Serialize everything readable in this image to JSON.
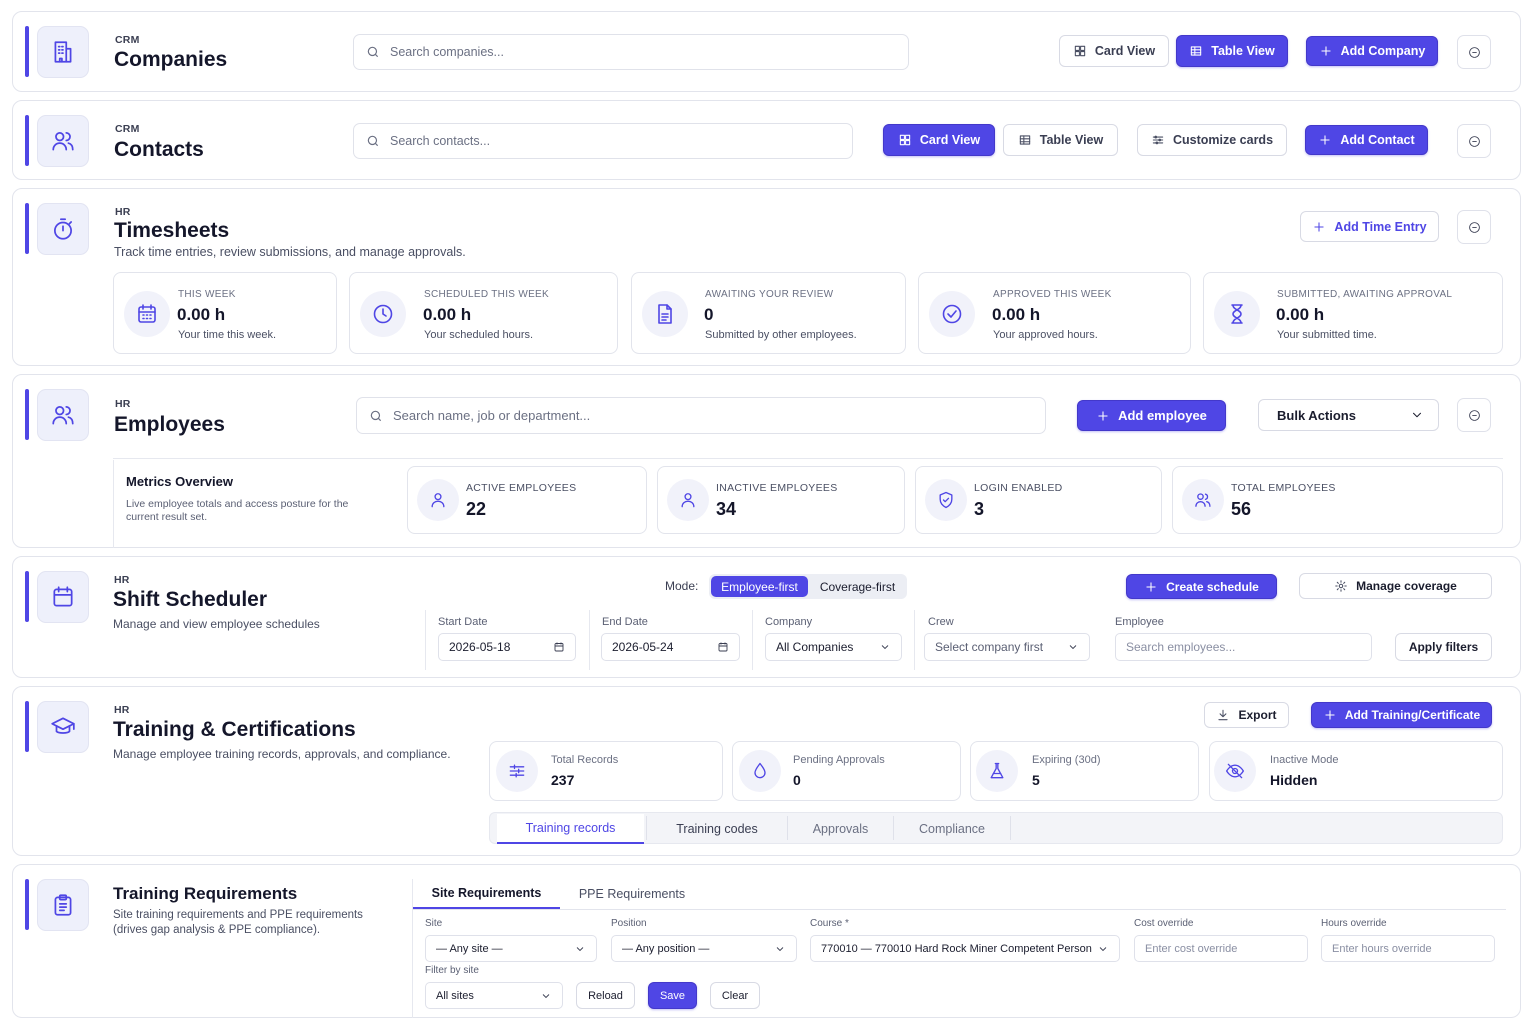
{
  "companies": {
    "kicker": "CRM",
    "title": "Companies",
    "search_placeholder": "Search companies...",
    "card_view": "Card View",
    "table_view": "Table View",
    "add": "Add Company"
  },
  "contacts": {
    "kicker": "CRM",
    "title": "Contacts",
    "search_placeholder": "Search contacts...",
    "card_view": "Card View",
    "table_view": "Table View",
    "customize": "Customize cards",
    "add": "Add Contact"
  },
  "timesheets": {
    "kicker": "HR",
    "title": "Timesheets",
    "subtitle": "Track time entries, review submissions, and manage approvals.",
    "add": "Add Time Entry",
    "stats": [
      {
        "label": "THIS WEEK",
        "value": "0.00 h",
        "note": "Your time this week.",
        "icon": "calendar-icon"
      },
      {
        "label": "SCHEDULED THIS WEEK",
        "value": "0.00 h",
        "note": "Your scheduled hours.",
        "icon": "clock-icon"
      },
      {
        "label": "AWAITING YOUR REVIEW",
        "value": "0",
        "note": "Submitted by other employees.",
        "icon": "document-icon"
      },
      {
        "label": "APPROVED THIS WEEK",
        "value": "0.00 h",
        "note": "Your approved hours.",
        "icon": "check-circle-icon"
      },
      {
        "label": "SUBMITTED, AWAITING APPROVAL",
        "value": "0.00 h",
        "note": "Your submitted time.",
        "icon": "hourglass-icon"
      }
    ]
  },
  "employees": {
    "kicker": "HR",
    "title": "Employees",
    "search_placeholder": "Search name, job or department...",
    "add": "Add employee",
    "bulk": "Bulk Actions",
    "metrics_title": "Metrics Overview",
    "metrics_desc": "Live employee totals and access posture for the current result set.",
    "metrics": [
      {
        "label": "ACTIVE EMPLOYEES",
        "value": "22",
        "icon": "user-icon"
      },
      {
        "label": "INACTIVE EMPLOYEES",
        "value": "34",
        "icon": "user-icon"
      },
      {
        "label": "LOGIN ENABLED",
        "value": "3",
        "icon": "shield-check-icon"
      },
      {
        "label": "TOTAL EMPLOYEES",
        "value": "56",
        "icon": "users-icon"
      }
    ]
  },
  "scheduler": {
    "kicker": "HR",
    "title": "Shift Scheduler",
    "subtitle": "Manage and view employee schedules",
    "mode_label": "Mode:",
    "mode_options": [
      "Employee-first",
      "Coverage-first"
    ],
    "mode_selected": "Employee-first",
    "create": "Create schedule",
    "manage": "Manage coverage",
    "start_label": "Start Date",
    "start_value": "2026-05-18",
    "end_label": "End Date",
    "end_value": "2026-05-24",
    "company_label": "Company",
    "company_value": "All Companies",
    "crew_label": "Crew",
    "crew_value": "Select company first",
    "employee_label": "Employee",
    "employee_placeholder": "Search employees...",
    "apply": "Apply filters"
  },
  "training": {
    "kicker": "HR",
    "title": "Training & Certifications",
    "subtitle": "Manage employee training records, approvals, and compliance.",
    "export": "Export",
    "add": "Add Training/Certificate",
    "stats": [
      {
        "label": "Total Records",
        "value": "237",
        "icon": "sliders-icon"
      },
      {
        "label": "Pending Approvals",
        "value": "0",
        "icon": "drop-icon"
      },
      {
        "label": "Expiring (30d)",
        "value": "5",
        "icon": "flask-icon"
      },
      {
        "label": "Inactive Mode",
        "value": "Hidden",
        "icon": "eye-off-icon"
      }
    ],
    "tabs": [
      "Training records",
      "Training codes",
      "Approvals",
      "Compliance"
    ],
    "active_tab": "Training records"
  },
  "requirements": {
    "title": "Training Requirements",
    "subtitle": "Site training requirements and PPE requirements (drives gap analysis & PPE compliance).",
    "tabs": [
      "Site Requirements",
      "PPE Requirements"
    ],
    "active_tab": "Site Requirements",
    "site_label": "Site",
    "site_value": "— Any site —",
    "position_label": "Position",
    "position_value": "— Any position —",
    "course_label": "Course *",
    "course_value": "770010 — 770010 Hard Rock Miner Competent Person",
    "cost_label": "Cost override",
    "cost_placeholder": "Enter cost override",
    "hours_label": "Hours override",
    "hours_placeholder": "Enter hours override",
    "filter_label": "Filter by site",
    "filter_value": "All sites",
    "reload": "Reload",
    "save": "Save",
    "clear": "Clear"
  },
  "colors": {
    "accent": "#4f46e5",
    "border": "#e2e4ec",
    "muted": "#6b7083"
  }
}
